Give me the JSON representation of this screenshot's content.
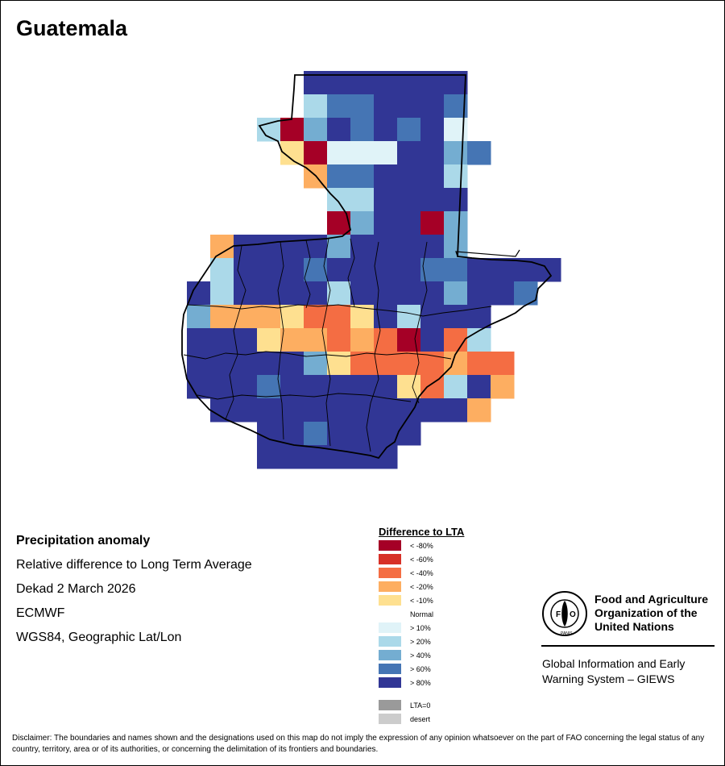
{
  "title": "Guatemala",
  "info": {
    "heading": "Precipitation anomaly",
    "subtitle": "Relative difference to Long Term Average",
    "period": "Dekad 2 March 2026",
    "source": "ECMWF",
    "projection": "WGS84, Geographic Lat/Lon"
  },
  "legend": {
    "title": "Difference to LTA",
    "items": [
      {
        "label": "< -80%",
        "color": "#a50026"
      },
      {
        "label": "< -60%",
        "color": "#d73027"
      },
      {
        "label": "< -40%",
        "color": "#f46d43"
      },
      {
        "label": "< -20%",
        "color": "#fdae61"
      },
      {
        "label": "< -10%",
        "color": "#fee090"
      },
      {
        "label": "Normal",
        "color": "#ffffff"
      },
      {
        "label": "> 10%",
        "color": "#e0f3f8"
      },
      {
        "label": "> 20%",
        "color": "#abd9e9"
      },
      {
        "label": "> 40%",
        "color": "#74add1"
      },
      {
        "label": "> 60%",
        "color": "#4575b4"
      },
      {
        "label": "> 80%",
        "color": "#313695"
      }
    ],
    "extra": [
      {
        "label": "LTA=0",
        "color": "#9a9a9a"
      },
      {
        "label": "desert",
        "color": "#cccccc"
      }
    ]
  },
  "org": {
    "name_line1": "Food and Agriculture",
    "name_line2": "Organization of the",
    "name_line3": "United Nations",
    "giews_line1": "Global Information and Early",
    "giews_line2": "Warning System – GIEWS",
    "logo_text": "FAO",
    "logo_motto": "FIAT PANIS"
  },
  "disclaimer": "Disclaimer: The boundaries and names shown and the designations used on this map do not imply the expression of any opinion whatsoever on the part of FAO concerning the legal status of any country, territory, area or of its authorities, or concerning the delimitation of its frontiers and boundaries.",
  "grid": {
    "row_count": 16,
    "rows": [
      {
        "start": 13,
        "cells": [
          10,
          10,
          10,
          10,
          10,
          10,
          10
        ]
      },
      {
        "start": 13,
        "cells": [
          7,
          9,
          9,
          10,
          10,
          10,
          9
        ]
      },
      {
        "start": 11,
        "cells": [
          7,
          0,
          8,
          10,
          9,
          10,
          9,
          10,
          6
        ]
      },
      {
        "start": 12,
        "cells": [
          4,
          0,
          6,
          6,
          6,
          10,
          10,
          8,
          9
        ]
      },
      {
        "start": 13,
        "cells": [
          3,
          9,
          9,
          10,
          10,
          10,
          7
        ]
      },
      {
        "start": 14,
        "cells": [
          7,
          7,
          10,
          10,
          10,
          10
        ]
      },
      {
        "start": 14,
        "cells": [
          0,
          8,
          10,
          10,
          0,
          8
        ]
      },
      {
        "start": 9,
        "cells": [
          3,
          10,
          10,
          10,
          10,
          8,
          10,
          10,
          10,
          10,
          8
        ]
      },
      {
        "start": 9,
        "cells": [
          7,
          10,
          10,
          10,
          9,
          10,
          10,
          10,
          10,
          9,
          9,
          10,
          10,
          10,
          10
        ]
      },
      {
        "start": 8,
        "cells": [
          10,
          7,
          10,
          10,
          10,
          10,
          7,
          10,
          10,
          10,
          10,
          8,
          10,
          10,
          9
        ]
      },
      {
        "start": 8,
        "cells": [
          8,
          3,
          3,
          3,
          4,
          2,
          2,
          4,
          10,
          7,
          10,
          10,
          10
        ]
      },
      {
        "start": 8,
        "cells": [
          10,
          10,
          10,
          4,
          3,
          3,
          2,
          3,
          2,
          0,
          10,
          2,
          7
        ]
      },
      {
        "start": 8,
        "cells": [
          10,
          10,
          10,
          10,
          10,
          8,
          4,
          2,
          2,
          2,
          2,
          3,
          2,
          2
        ]
      },
      {
        "start": 8,
        "cells": [
          10,
          10,
          10,
          9,
          10,
          10,
          10,
          10,
          10,
          4,
          2,
          7,
          10,
          3
        ]
      },
      {
        "start": 9,
        "cells": [
          10,
          10,
          10,
          10,
          10,
          10,
          10,
          10,
          10,
          10,
          10,
          3
        ]
      },
      {
        "start": 11,
        "cells": [
          10,
          10,
          9,
          10,
          10,
          10,
          10
        ]
      }
    ],
    "extra_rows": [
      {
        "row": 16,
        "start": 11,
        "cells": [
          10,
          10,
          10,
          10,
          10,
          10
        ]
      }
    ]
  }
}
